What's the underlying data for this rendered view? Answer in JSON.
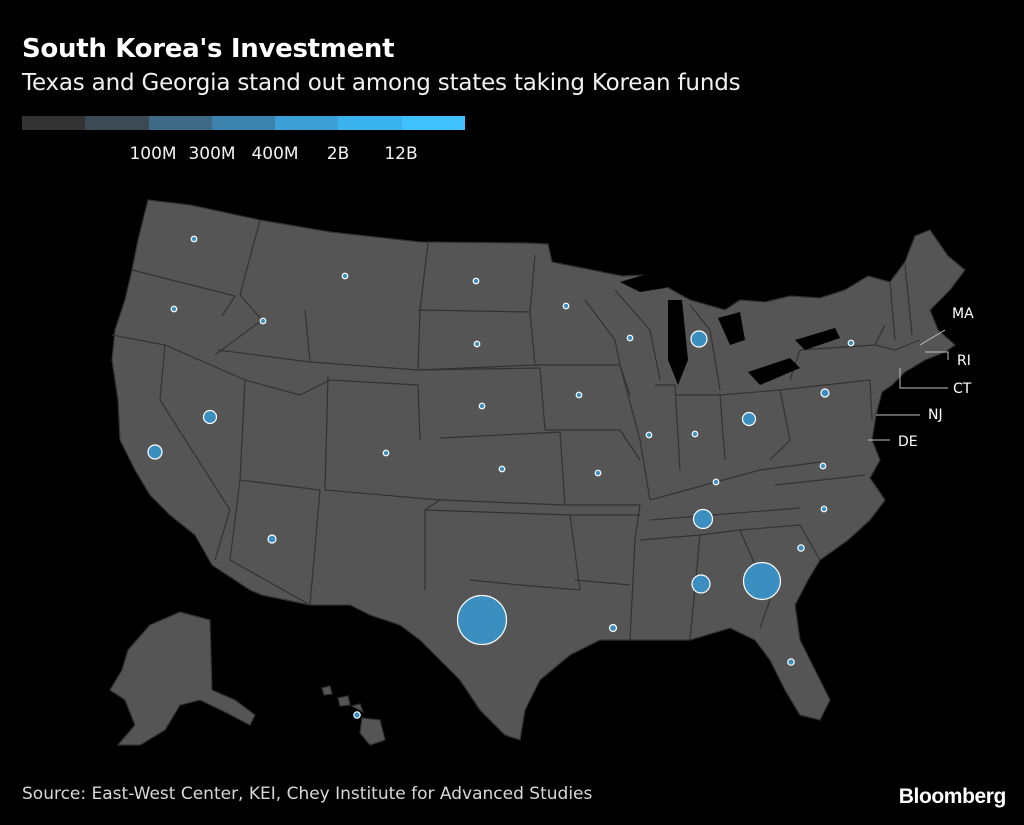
{
  "header": {
    "title": "South Korea's Investment",
    "subtitle": "Texas and Georgia stand out among states taking Korean funds"
  },
  "legend": {
    "colors": [
      "#333333",
      "#3b4a55",
      "#3f6a86",
      "#3c84ad",
      "#3c9fd6",
      "#39b2ee",
      "#3fc2ff"
    ],
    "labels": [
      "100M",
      "300M",
      "400M",
      "2B",
      "12B"
    ]
  },
  "colors": {
    "background": "#000000",
    "state_fill": "#555555",
    "bubble_fill": "#3b8fc0"
  },
  "state_callouts": [
    {
      "state": "MA",
      "label": "MA"
    },
    {
      "state": "RI",
      "label": "RI"
    },
    {
      "state": "CT",
      "label": "CT"
    },
    {
      "state": "NJ",
      "label": "NJ"
    },
    {
      "state": "DE",
      "label": "DE"
    }
  ],
  "footer": {
    "source": "Source: East-West Center, KEI, Chey Institute for Advanced Studies",
    "brand": "Bloomberg"
  }
}
